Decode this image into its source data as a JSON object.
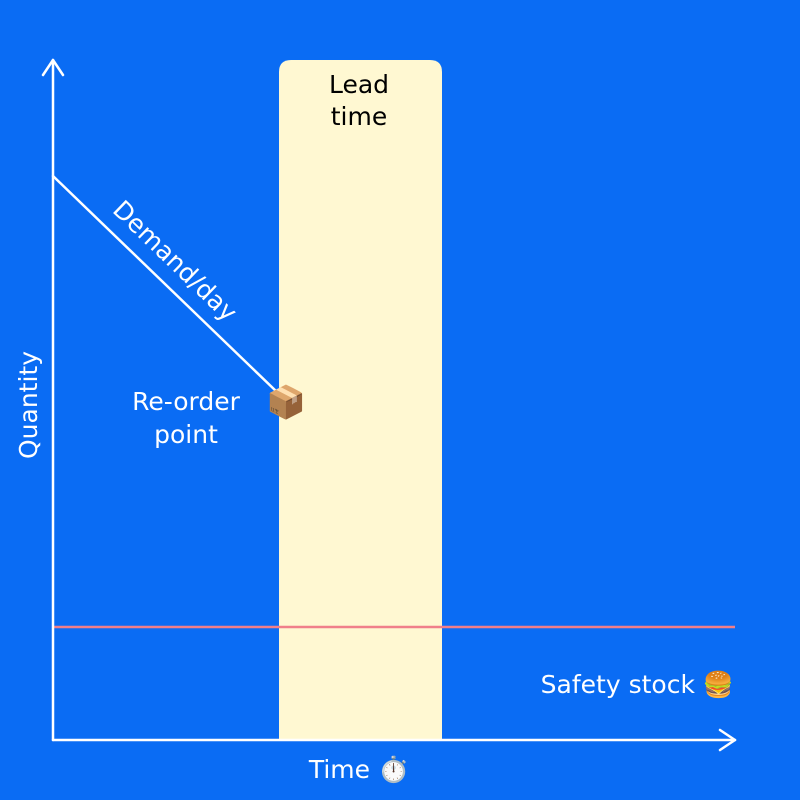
{
  "lead_time": [
    "Lead",
    "time"
  ],
  "demand_label": "Demand/day",
  "reorder_point": [
    "Re-order",
    "point"
  ],
  "reorder_icon": "📦",
  "y_axis_label": "Quantity",
  "x_axis_label": "Time ⏱️",
  "safety_stock_label": "Safety stock 🍔"
}
